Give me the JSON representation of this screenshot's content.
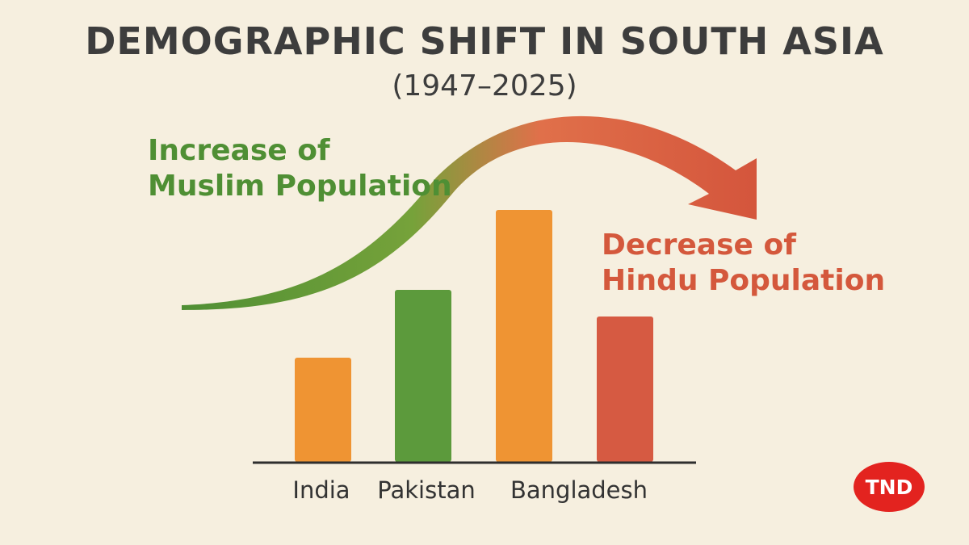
{
  "title": "DEMOGRAPHIC SHIFT IN SOUTH ASIA",
  "subtitle": "(1947–2025)",
  "annotations": {
    "increase": [
      "Increase of",
      "Muslim Population"
    ],
    "decrease": [
      "Decrease of",
      "Hindu Population"
    ]
  },
  "logo_text": "TND",
  "colors": {
    "background": "#f6efdf",
    "orange": "#ef9433",
    "green": "#5c9a3c",
    "red": "#d65a42",
    "logo": "#e3231f"
  },
  "chart_data": {
    "type": "bar",
    "title": "DEMOGRAPHIC SHIFT IN SOUTH ASIA",
    "subtitle": "(1947–2025)",
    "categories": [
      "India",
      "Pakistan",
      "Bangladesh",
      ""
    ],
    "values": [
      43,
      71,
      104,
      60
    ],
    "bar_colors": [
      "#ef9433",
      "#5c9a3c",
      "#ef9433",
      "#d65a42"
    ],
    "ylim": [
      0,
      115
    ],
    "grid": false,
    "axes_ticks": false,
    "xlabel": "",
    "ylabel": ""
  }
}
